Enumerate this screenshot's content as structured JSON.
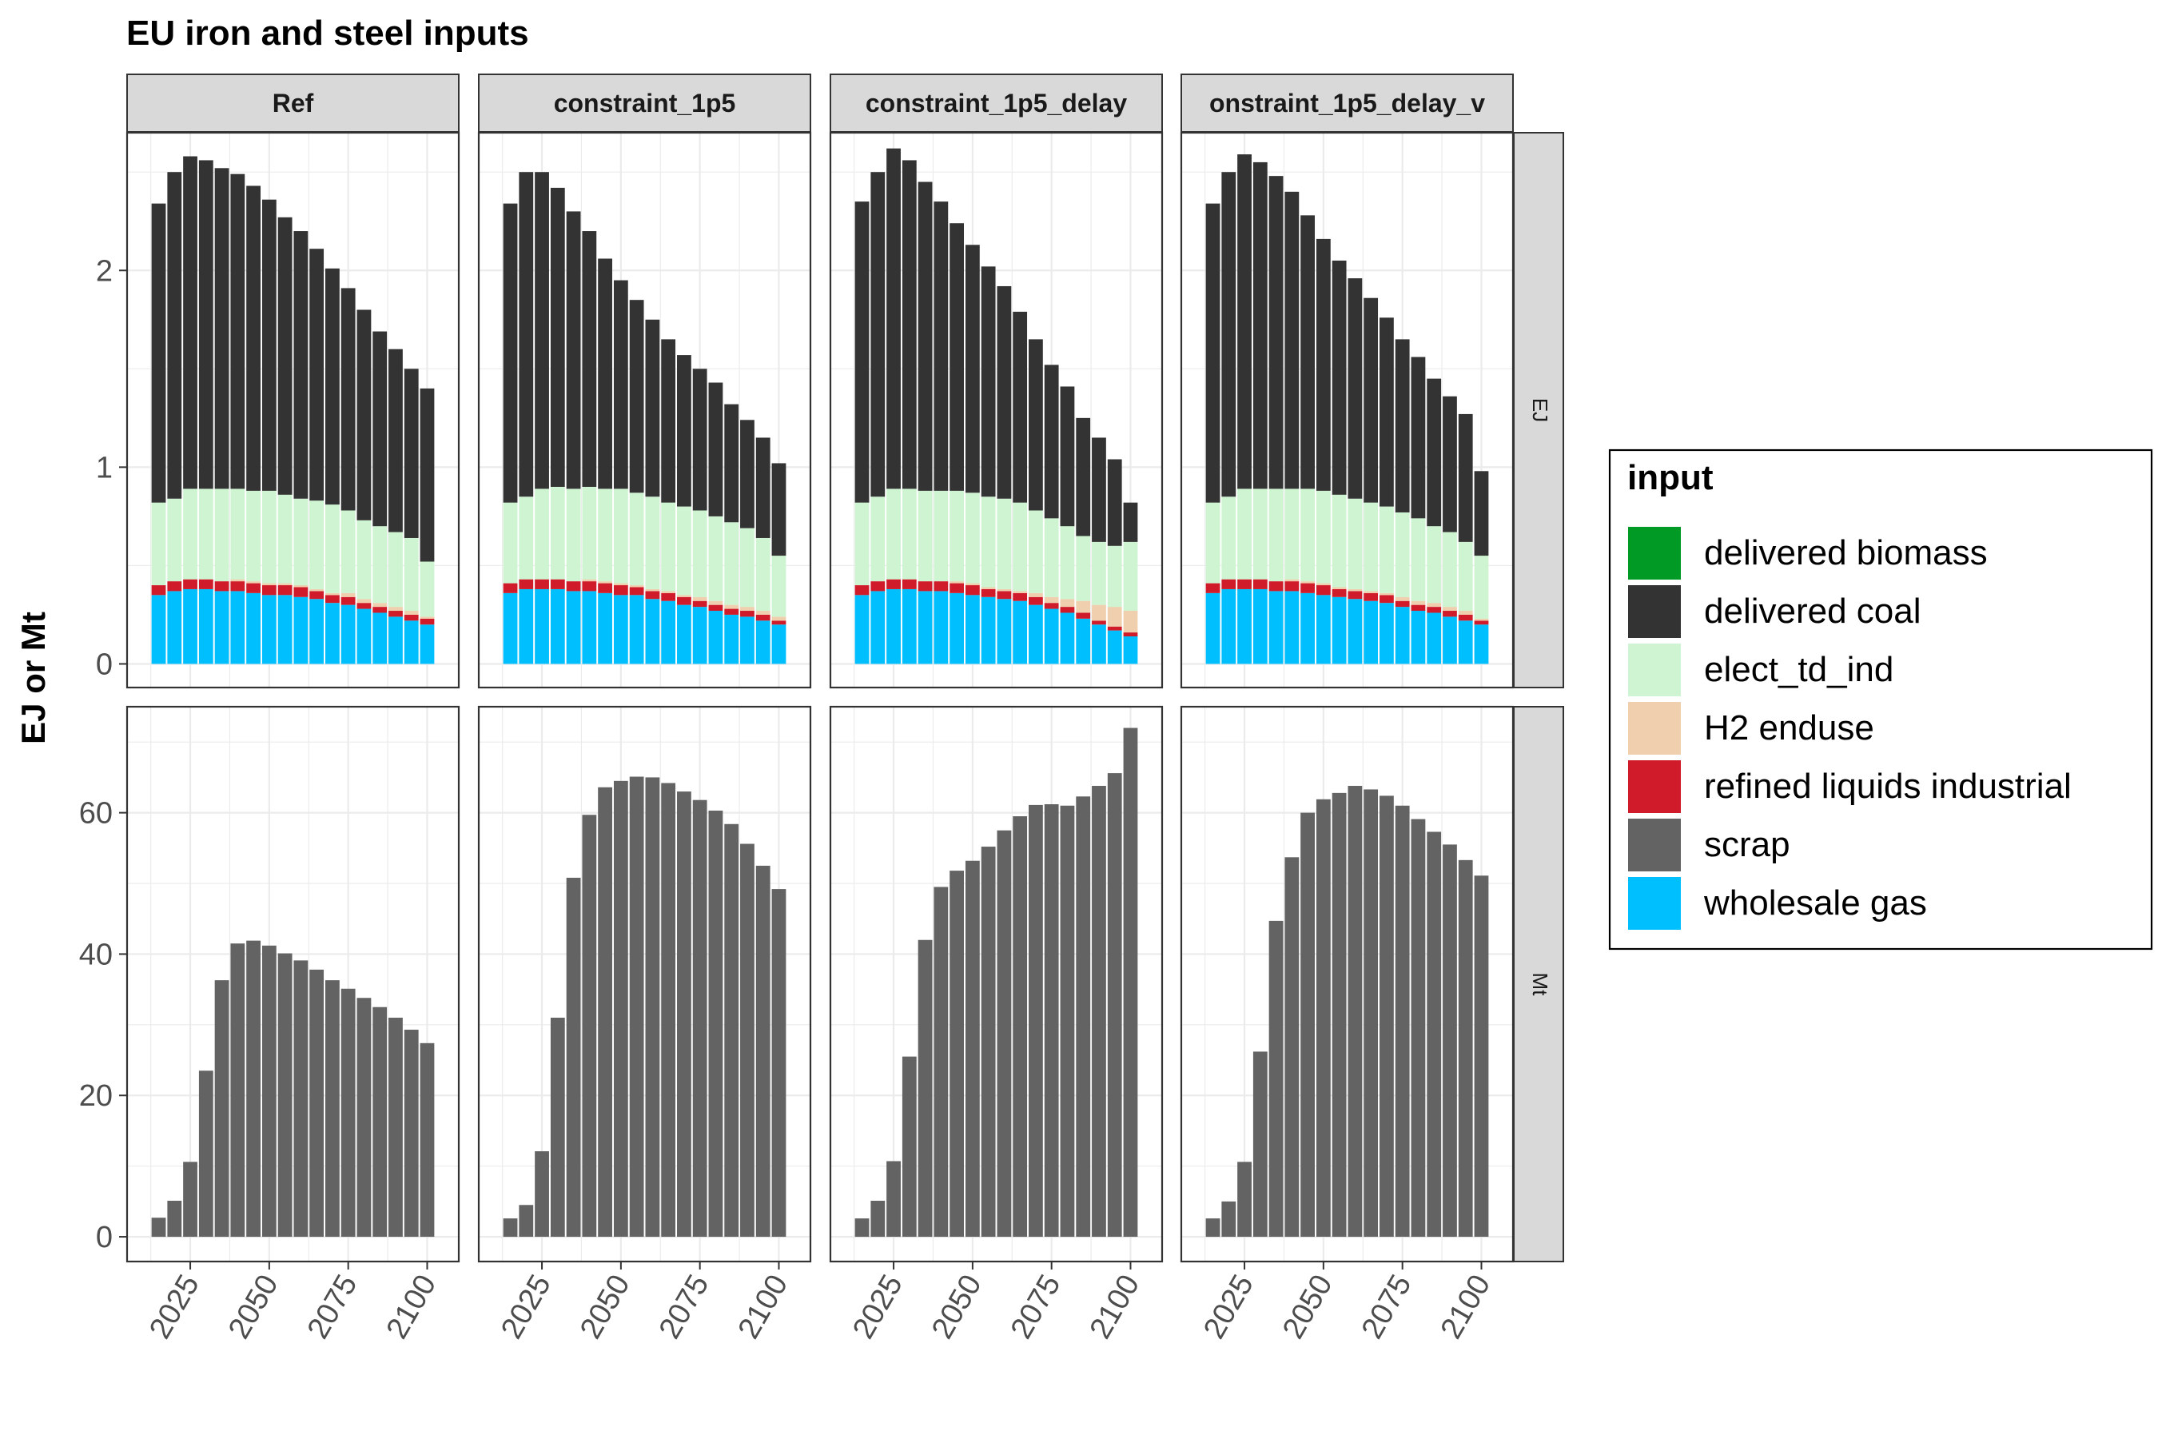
{
  "title": "EU iron and steel inputs",
  "ylabel": "EJ or Mt",
  "x_ticks": [
    "2025",
    "2050",
    "2075",
    "2100"
  ],
  "legend": {
    "title": "input",
    "items": [
      {
        "label": "delivered biomass",
        "color": "#009a24"
      },
      {
        "label": "delivered coal",
        "color": "#333333"
      },
      {
        "label": "elect_td_ind",
        "color": "#cef4d1"
      },
      {
        "label": "H2 enduse",
        "color": "#efcfae"
      },
      {
        "label": "refined liquids industrial",
        "color": "#d01c2a"
      },
      {
        "label": "scrap",
        "color": "#636363"
      },
      {
        "label": "wholesale gas",
        "color": "#00bfff"
      }
    ]
  },
  "chart_data": {
    "type": "bar",
    "stacked": true,
    "facets": {
      "columns": [
        "Ref",
        "constraint_1p5",
        "constraint_1p5_delay",
        "onstraint_1p5_delay_v"
      ],
      "rows": [
        "EJ",
        "Mt"
      ]
    },
    "x": [
      2015,
      2020,
      2025,
      2030,
      2035,
      2040,
      2045,
      2050,
      2055,
      2060,
      2065,
      2070,
      2075,
      2080,
      2085,
      2090,
      2095,
      2100
    ],
    "xlim": [
      2005,
      2110
    ],
    "rows": {
      "EJ": {
        "ylim": [
          -0.12,
          2.7
        ],
        "yticks": [
          0,
          1,
          2
        ],
        "series_order": [
          "wholesale gas",
          "refined liquids industrial",
          "H2 enduse",
          "elect_td_ind",
          "delivered coal"
        ],
        "panels": {
          "Ref": {
            "wholesale gas": [
              0.35,
              0.37,
              0.38,
              0.38,
              0.37,
              0.37,
              0.36,
              0.35,
              0.35,
              0.34,
              0.33,
              0.31,
              0.3,
              0.28,
              0.26,
              0.24,
              0.22,
              0.2
            ],
            "refined liquids industrial": [
              0.05,
              0.05,
              0.05,
              0.05,
              0.05,
              0.05,
              0.05,
              0.05,
              0.05,
              0.05,
              0.04,
              0.04,
              0.04,
              0.03,
              0.03,
              0.03,
              0.03,
              0.03
            ],
            "H2 enduse": [
              0.0,
              0.0,
              0.0,
              0.0,
              0.0,
              0.01,
              0.01,
              0.01,
              0.01,
              0.01,
              0.01,
              0.01,
              0.02,
              0.02,
              0.02,
              0.02,
              0.02,
              0.01
            ],
            "elect_td_ind": [
              0.42,
              0.42,
              0.46,
              0.46,
              0.47,
              0.46,
              0.46,
              0.47,
              0.45,
              0.44,
              0.45,
              0.45,
              0.42,
              0.4,
              0.39,
              0.38,
              0.37,
              0.28
            ],
            "delivered coal": [
              1.52,
              1.66,
              1.69,
              1.67,
              1.63,
              1.6,
              1.55,
              1.48,
              1.41,
              1.36,
              1.28,
              1.2,
              1.13,
              1.07,
              0.99,
              0.93,
              0.86,
              0.88
            ]
          },
          "constraint_1p5": {
            "wholesale gas": [
              0.36,
              0.38,
              0.38,
              0.38,
              0.37,
              0.37,
              0.36,
              0.35,
              0.35,
              0.33,
              0.32,
              0.3,
              0.29,
              0.27,
              0.25,
              0.24,
              0.22,
              0.2
            ],
            "refined liquids industrial": [
              0.05,
              0.05,
              0.05,
              0.05,
              0.05,
              0.05,
              0.05,
              0.05,
              0.04,
              0.04,
              0.04,
              0.04,
              0.03,
              0.03,
              0.03,
              0.03,
              0.03,
              0.02
            ],
            "H2 enduse": [
              0.0,
              0.0,
              0.0,
              0.0,
              0.0,
              0.01,
              0.01,
              0.01,
              0.01,
              0.01,
              0.01,
              0.01,
              0.02,
              0.02,
              0.02,
              0.02,
              0.02,
              0.02
            ],
            "elect_td_ind": [
              0.41,
              0.42,
              0.46,
              0.47,
              0.47,
              0.47,
              0.47,
              0.48,
              0.47,
              0.47,
              0.45,
              0.45,
              0.44,
              0.43,
              0.42,
              0.4,
              0.37,
              0.31
            ],
            "delivered coal": [
              1.52,
              1.65,
              1.61,
              1.52,
              1.41,
              1.3,
              1.17,
              1.06,
              0.98,
              0.9,
              0.83,
              0.77,
              0.72,
              0.68,
              0.6,
              0.55,
              0.51,
              0.47
            ]
          },
          "constraint_1p5_delay": {
            "wholesale gas": [
              0.35,
              0.37,
              0.38,
              0.38,
              0.37,
              0.37,
              0.36,
              0.35,
              0.34,
              0.33,
              0.32,
              0.3,
              0.28,
              0.26,
              0.23,
              0.2,
              0.17,
              0.14
            ],
            "refined liquids industrial": [
              0.05,
              0.05,
              0.05,
              0.05,
              0.05,
              0.05,
              0.05,
              0.05,
              0.04,
              0.04,
              0.04,
              0.04,
              0.03,
              0.03,
              0.03,
              0.02,
              0.02,
              0.02
            ],
            "H2 enduse": [
              0.0,
              0.0,
              0.0,
              0.0,
              0.0,
              0.0,
              0.01,
              0.01,
              0.01,
              0.01,
              0.01,
              0.02,
              0.03,
              0.04,
              0.06,
              0.08,
              0.1,
              0.11
            ],
            "elect_td_ind": [
              0.42,
              0.43,
              0.46,
              0.46,
              0.46,
              0.46,
              0.46,
              0.46,
              0.46,
              0.46,
              0.45,
              0.42,
              0.4,
              0.37,
              0.33,
              0.32,
              0.31,
              0.35
            ],
            "delivered coal": [
              1.53,
              1.65,
              1.73,
              1.67,
              1.57,
              1.47,
              1.36,
              1.26,
              1.17,
              1.08,
              0.97,
              0.87,
              0.78,
              0.71,
              0.6,
              0.53,
              0.44,
              0.2
            ]
          },
          "onstraint_1p5_delay_v": {
            "wholesale gas": [
              0.36,
              0.38,
              0.38,
              0.38,
              0.37,
              0.37,
              0.36,
              0.35,
              0.34,
              0.33,
              0.32,
              0.31,
              0.29,
              0.27,
              0.26,
              0.24,
              0.22,
              0.2
            ],
            "refined liquids industrial": [
              0.05,
              0.05,
              0.05,
              0.05,
              0.05,
              0.05,
              0.05,
              0.05,
              0.04,
              0.04,
              0.04,
              0.04,
              0.03,
              0.03,
              0.03,
              0.03,
              0.03,
              0.02
            ],
            "H2 enduse": [
              0.0,
              0.0,
              0.0,
              0.0,
              0.0,
              0.01,
              0.01,
              0.01,
              0.01,
              0.01,
              0.01,
              0.01,
              0.02,
              0.02,
              0.02,
              0.02,
              0.02,
              0.01
            ],
            "elect_td_ind": [
              0.41,
              0.42,
              0.46,
              0.46,
              0.47,
              0.46,
              0.47,
              0.47,
              0.47,
              0.46,
              0.45,
              0.44,
              0.43,
              0.42,
              0.39,
              0.38,
              0.35,
              0.32
            ],
            "delivered coal": [
              1.52,
              1.65,
              1.7,
              1.66,
              1.59,
              1.51,
              1.39,
              1.28,
              1.19,
              1.12,
              1.04,
              0.96,
              0.88,
              0.82,
              0.75,
              0.69,
              0.65,
              0.43
            ]
          }
        }
      },
      "Mt": {
        "ylim": [
          -3.5,
          75
        ],
        "yticks": [
          0,
          20,
          40,
          60
        ],
        "series_order": [
          "scrap"
        ],
        "panels": {
          "Ref": {
            "scrap": [
              2.7,
              5.1,
              10.6,
              23.5,
              36.3,
              41.5,
              41.9,
              41.2,
              40.1,
              39.1,
              37.8,
              36.3,
              35.1,
              33.8,
              32.5,
              31.0,
              29.3,
              27.4
            ]
          },
          "constraint_1p5": {
            "scrap": [
              2.6,
              4.5,
              12.1,
              31.0,
              50.8,
              59.7,
              63.6,
              64.5,
              65.1,
              65.0,
              64.2,
              63.0,
              61.8,
              60.3,
              58.4,
              55.6,
              52.5,
              49.2
            ]
          },
          "constraint_1p5_delay": {
            "scrap": [
              2.6,
              5.1,
              10.7,
              25.5,
              42.0,
              49.5,
              51.8,
              53.2,
              55.2,
              57.5,
              59.5,
              61.1,
              61.2,
              61.0,
              62.3,
              63.8,
              65.6,
              72.0
            ]
          },
          "onstraint_1p5_delay_v": {
            "scrap": [
              2.6,
              5.0,
              10.6,
              26.2,
              44.7,
              53.7,
              60.0,
              61.9,
              62.8,
              63.8,
              63.3,
              62.4,
              61.0,
              59.1,
              57.3,
              55.5,
              53.3,
              51.1
            ]
          }
        }
      }
    }
  }
}
